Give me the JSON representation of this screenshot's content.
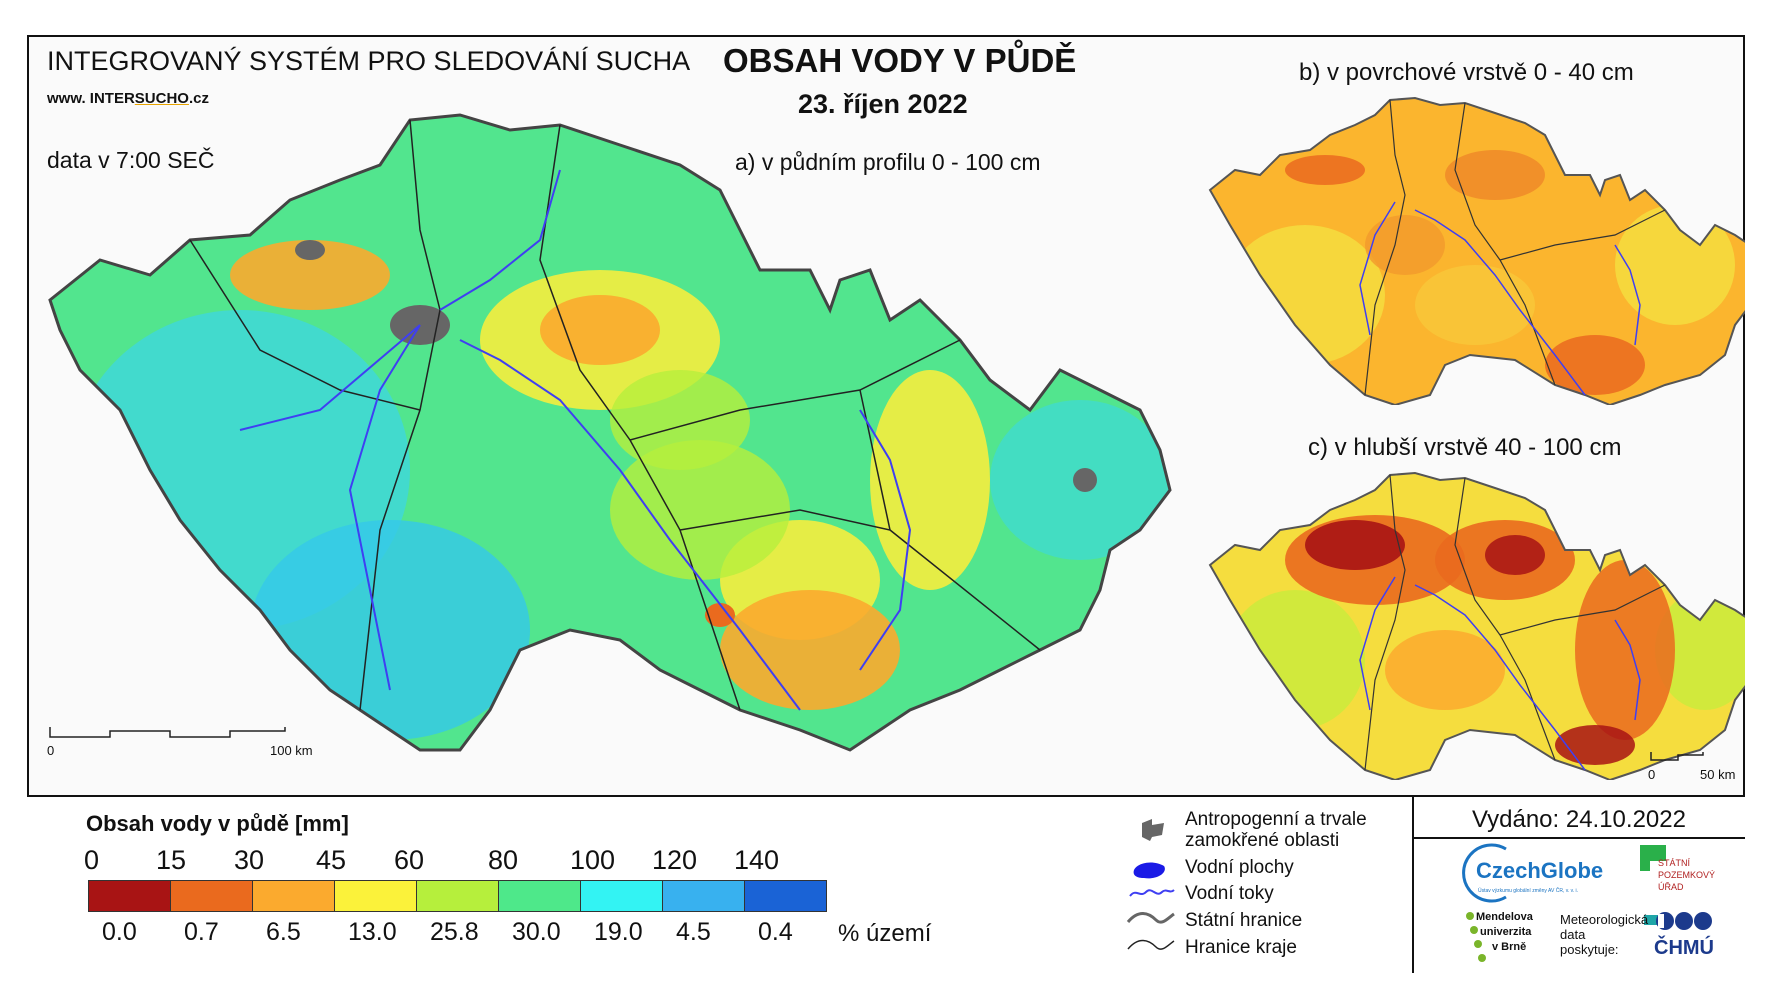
{
  "header": {
    "system_title": "INTEGROVANÝ SYSTÉM PRO SLEDOVÁNÍ SUCHA",
    "website_prefix": "www. INTER",
    "website_accent": "SUCHO",
    "website_suffix": ".cz",
    "data_time": "data v 7:00 SEČ"
  },
  "title": {
    "main": "OBSAH VODY V PŮDĚ",
    "date": "23. říjen 2022"
  },
  "maps": {
    "a_label": "a) v půdním profilu 0 - 100 cm",
    "b_label": "b) v povrchové vrstvě 0 - 40 cm",
    "c_label": "c) v hlubší vrstvě 40 - 100 cm",
    "scale_main_start": "0",
    "scale_main_end": "100 km",
    "scale_small_start": "0",
    "scale_small_end": "50 km"
  },
  "legend": {
    "title": "Obsah vody v půdě  [mm]",
    "unit_label": "% území",
    "thresholds": [
      "0",
      "15",
      "30",
      "45",
      "60",
      "80",
      "100",
      "120",
      "140"
    ],
    "classes": [
      {
        "color": "#a81414",
        "percent": "0.0"
      },
      {
        "color": "#ea6a1e",
        "percent": "0.7"
      },
      {
        "color": "#fbaa2e",
        "percent": "6.5"
      },
      {
        "color": "#fbf23a",
        "percent": "13.0"
      },
      {
        "color": "#b6ef3c",
        "percent": "25.8"
      },
      {
        "color": "#4ee88a",
        "percent": "30.0"
      },
      {
        "color": "#33f3f3",
        "percent": "19.0"
      },
      {
        "color": "#38b1ef",
        "percent": "4.5"
      },
      {
        "color": "#1a63d6",
        "percent": "0.4"
      }
    ]
  },
  "key": {
    "urban_line1": "Antropogenní a trvale",
    "urban_line2": "zamokřené oblasti",
    "water_bodies": "Vodní plochy",
    "rivers": "Vodní toky",
    "state_border": "Státní hranice",
    "region_border": "Hranice kraje"
  },
  "issued": "Vydáno: 24.10.2022",
  "logos": {
    "czechglobe": "CzechGlobe",
    "czechglobe_sub": "Ústav výzkumu globální změny AV ČR, v. v. i.",
    "spu_line1": "STÁTNÍ",
    "spu_line2": "POZEMKOVÝ",
    "spu_line3": "ÚŘAD",
    "mendel_line1": "Mendelova",
    "mendel_line2": "univerzita",
    "mendel_line3": "v Brně",
    "met_line1": "Meteorologická",
    "met_line2": "data",
    "met_line3": "poskytuje:",
    "chmu": "ČHMÚ"
  }
}
